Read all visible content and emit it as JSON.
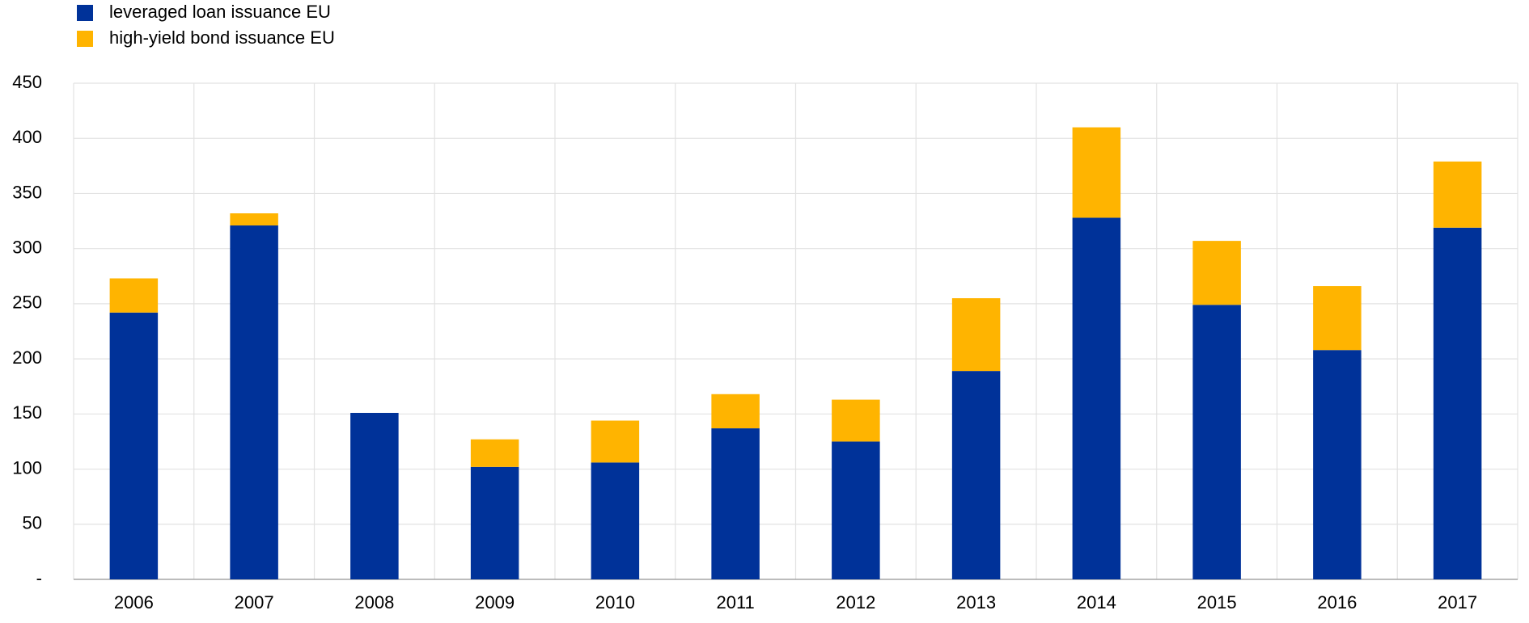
{
  "chart_data": {
    "type": "stacked_bar",
    "categories": [
      "2006",
      "2007",
      "2008",
      "2009",
      "2010",
      "2011",
      "2012",
      "2013",
      "2014",
      "2015",
      "2016",
      "2017"
    ],
    "series": [
      {
        "name": "leveraged loan issuance EU",
        "color": "#003299",
        "values": [
          242,
          321,
          151,
          102,
          106,
          137,
          125,
          189,
          328,
          249,
          208,
          319
        ]
      },
      {
        "name": "high-yield bond issuance EU",
        "color": "#ffb400",
        "values": [
          31,
          11,
          0,
          25,
          38,
          31,
          38,
          66,
          82,
          58,
          58,
          60
        ]
      }
    ],
    "ylim": [
      0,
      450
    ],
    "yticks": [
      {
        "value": 0,
        "label": "-"
      },
      50,
      100,
      150,
      200,
      250,
      300,
      350,
      400,
      450
    ],
    "grid": true
  }
}
